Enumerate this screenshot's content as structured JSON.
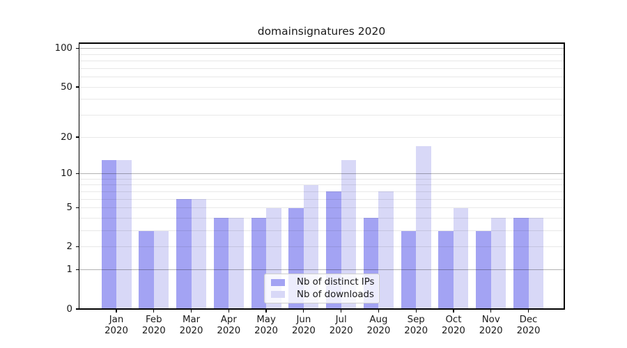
{
  "chart_data": {
    "type": "bar",
    "title": "domainsignatures 2020",
    "categories": [
      "Jan",
      "Feb",
      "Mar",
      "Apr",
      "May",
      "Jun",
      "Jul",
      "Aug",
      "Sep",
      "Oct",
      "Nov",
      "Dec"
    ],
    "year_label": "2020",
    "series": [
      {
        "name": "Nb of distinct IPs",
        "color": "#a3a3f3",
        "values": [
          13,
          3,
          6,
          4,
          4,
          5,
          7,
          4,
          3,
          3,
          3,
          4
        ]
      },
      {
        "name": "Nb of downloads",
        "color": "#d8d8f7",
        "values": [
          13,
          3,
          6,
          4,
          5,
          8,
          13,
          7,
          17,
          5,
          4,
          4
        ]
      }
    ],
    "xlabel": "",
    "ylabel": "",
    "yscale": "log1p",
    "ylim": [
      0,
      110
    ],
    "ytick_values": [
      0,
      1,
      2,
      5,
      10,
      20,
      50,
      100
    ],
    "ytick_labels": [
      "0",
      "1",
      "2",
      "5",
      "10",
      "20",
      "50",
      "100"
    ],
    "major_grid_values": [
      1,
      10,
      100
    ],
    "minor_grid_values": [
      2,
      3,
      4,
      5,
      6,
      7,
      8,
      9,
      20,
      30,
      40,
      50,
      60,
      70,
      80,
      90
    ],
    "grid": true,
    "legend_position": "lower center"
  },
  "colors": {
    "series_ips": "#a3a3f3",
    "series_downloads": "#d8d8f7",
    "grid_major": "rgba(0,0,0,0.30)",
    "grid_minor": "rgba(0,0,0,0.09)",
    "axis": "#000000",
    "background": "#ffffff",
    "legend_border": "#cccccc",
    "legend_background": "rgba(255,255,255,0.8)"
  }
}
